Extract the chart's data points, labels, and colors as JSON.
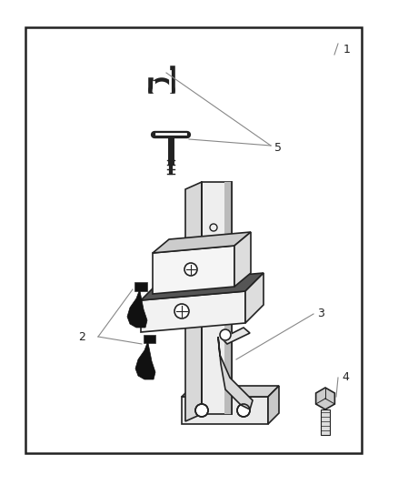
{
  "background_color": "#ffffff",
  "border_color": "#222222",
  "line_color": "#222222",
  "fill_white": "#ffffff",
  "fill_light": "#f0f0f0",
  "fill_medium": "#cccccc",
  "fill_dark": "#444444",
  "fill_black": "#111111",
  "label_fontsize": 9,
  "fig_width": 4.38,
  "fig_height": 5.33,
  "dpi": 100
}
